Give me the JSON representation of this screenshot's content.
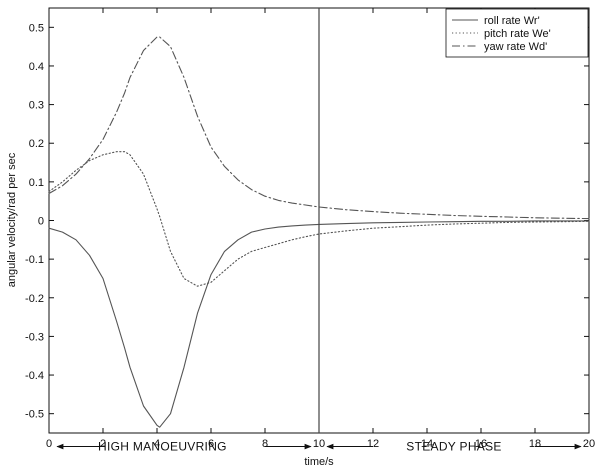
{
  "chart_data": {
    "type": "line",
    "xlabel": "time/s",
    "ylabel": "angular velocity/rad per sec",
    "xlim": [
      0,
      20
    ],
    "ylim": [
      -0.55,
      0.55
    ],
    "grid": false,
    "legend_position": "top-right",
    "x_ticks": [
      0,
      2,
      4,
      6,
      8,
      10,
      12,
      14,
      16,
      18,
      20
    ],
    "x_tick_labels": [
      "0",
      "2",
      "4",
      "6",
      "8",
      "10",
      "12",
      "14",
      "16",
      "18",
      "20"
    ],
    "y_ticks": [
      0.5,
      0.4,
      0.3,
      0.2,
      0.1,
      0,
      -0.1,
      -0.2,
      -0.3,
      -0.4,
      -0.5
    ],
    "y_tick_labels": [
      "0.5",
      "0.4",
      "0.3",
      "0.2",
      "0.1",
      "0",
      "-0.1",
      "-0.2",
      "-0.3",
      "-0.4",
      "-0.5"
    ],
    "x": [
      0,
      0.5,
      1,
      1.5,
      2,
      2.5,
      2.8,
      3,
      3.5,
      4,
      4.1,
      4.5,
      5,
      5.5,
      6,
      6.5,
      7,
      7.5,
      8,
      8.5,
      9,
      9.5,
      10,
      11,
      12,
      13,
      14,
      15,
      16,
      17,
      18,
      19,
      20
    ],
    "series": [
      {
        "name": "roll rate Wr'",
        "style": "solid",
        "color": "#555555",
        "values": [
          -0.02,
          -0.03,
          -0.05,
          -0.09,
          -0.15,
          -0.26,
          -0.33,
          -0.38,
          -0.48,
          -0.53,
          -0.535,
          -0.5,
          -0.38,
          -0.24,
          -0.14,
          -0.08,
          -0.05,
          -0.03,
          -0.022,
          -0.017,
          -0.014,
          -0.012,
          -0.01,
          -0.008,
          -0.006,
          -0.005,
          -0.004,
          -0.003,
          -0.002,
          -0.002,
          -0.001,
          -0.001,
          -0.001
        ]
      },
      {
        "name": "pitch rate We'",
        "style": "dotted",
        "color": "#555555",
        "values": [
          0.075,
          0.1,
          0.13,
          0.155,
          0.17,
          0.178,
          0.178,
          0.17,
          0.12,
          0.03,
          0.01,
          -0.08,
          -0.15,
          -0.17,
          -0.16,
          -0.13,
          -0.1,
          -0.08,
          -0.07,
          -0.06,
          -0.05,
          -0.042,
          -0.035,
          -0.027,
          -0.02,
          -0.016,
          -0.012,
          -0.009,
          -0.007,
          -0.005,
          -0.004,
          -0.003,
          -0.002
        ]
      },
      {
        "name": "yaw rate Wd'",
        "style": "dashdot",
        "color": "#555555",
        "values": [
          0.07,
          0.09,
          0.12,
          0.16,
          0.21,
          0.28,
          0.33,
          0.37,
          0.44,
          0.475,
          0.475,
          0.45,
          0.37,
          0.27,
          0.19,
          0.14,
          0.105,
          0.08,
          0.063,
          0.052,
          0.045,
          0.04,
          0.035,
          0.028,
          0.023,
          0.019,
          0.016,
          0.013,
          0.011,
          0.009,
          0.007,
          0.006,
          0.005
        ]
      }
    ],
    "vertical_line": {
      "x": 10,
      "y_top": 0.55
    },
    "annotations": [
      {
        "text": "HIGH MANOEUVRING",
        "x": 4.2,
        "y": -0.585
      },
      {
        "text": "STEADY PHASE",
        "x": 15.0,
        "y": -0.585
      }
    ],
    "arrows": [
      {
        "from": 2.0,
        "to": 0.3,
        "y": -0.585
      },
      {
        "from": 8.0,
        "to": 9.7,
        "y": -0.585
      },
      {
        "from": 12.0,
        "to": 10.3,
        "y": -0.585
      },
      {
        "from": 18.0,
        "to": 19.7,
        "y": -0.585
      }
    ]
  }
}
